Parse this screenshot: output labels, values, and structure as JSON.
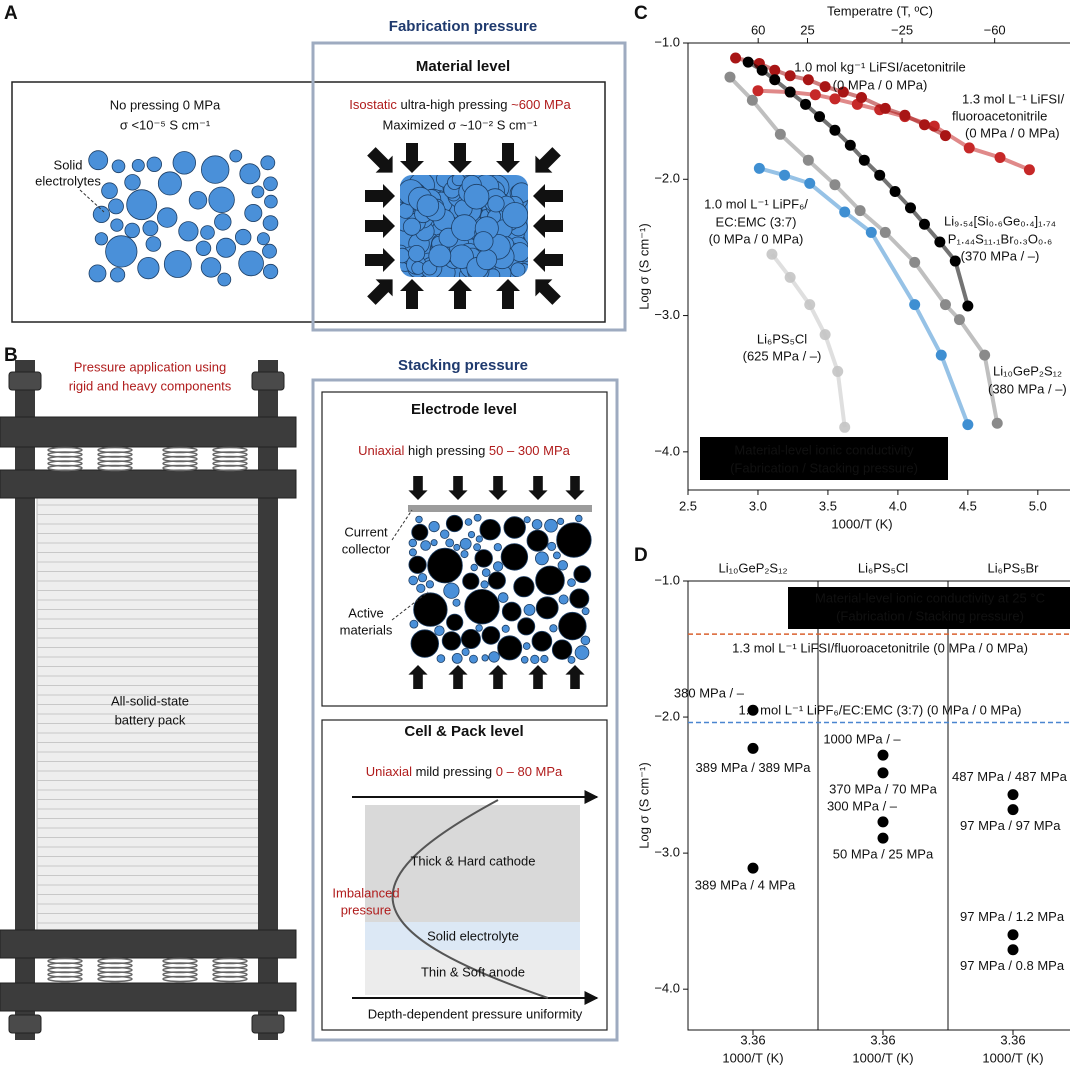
{
  "panel_a": {
    "label": "A",
    "header": "Fabrication pressure",
    "box_title": "Material level",
    "left_lines": [
      "No pressing 0 MPa",
      "σ <10⁻⁵ S cm⁻¹"
    ],
    "right_line1": [
      "Isostatic",
      " ultra-high pressing ",
      "~600 MPa"
    ],
    "right_line2": "Maximized σ ~10⁻² S cm⁻¹",
    "callout": [
      "Solid",
      "electrolytes"
    ]
  },
  "panel_b": {
    "label": "B",
    "left_caption": [
      "Pressure application using",
      "rigid and heavy components"
    ],
    "pack_label": [
      "All-solid-state",
      "battery pack"
    ],
    "header": "Stacking pressure",
    "electrode": {
      "title": "Electrode level",
      "line": [
        "Uniaxial",
        " high pressing ",
        "50 – 300 MPa"
      ],
      "callout1": [
        "Current",
        "collector"
      ],
      "callout2": [
        "Active",
        "materials"
      ]
    },
    "cell": {
      "title": "Cell & Pack level",
      "line": [
        "Uniaxial",
        " mild pressing ",
        "0 – 80 MPa"
      ],
      "layers": [
        "Thick & Hard cathode",
        "Solid electrolyte",
        "Thin & Soft anode"
      ],
      "callout": [
        "Imbalanced",
        "pressure"
      ],
      "axis_label": "Depth-dependent pressure uniformity"
    }
  },
  "chart_data": [
    {
      "type": "line",
      "panel_label": "C",
      "xlabel": "1000/T (K)",
      "ylabel": "Log σ (S cm⁻¹)",
      "x2label": "Temperatre (T, ºC)",
      "xlim": [
        2.5,
        5.23
      ],
      "ylim": [
        -4.28,
        -1.0
      ],
      "xticks": [
        2.5,
        {
          "value": 3,
          "label": "3.0"
        },
        3.5,
        {
          "value": 4,
          "label": "4.0"
        },
        4.5,
        {
          "value": 5,
          "label": "5.0"
        }
      ],
      "yticks": [
        {
          "value": -1,
          "label": "−1.0"
        },
        {
          "value": -2,
          "label": "−2.0"
        },
        {
          "value": -3,
          "label": "−3.0"
        },
        {
          "value": -4,
          "label": "−4.0"
        }
      ],
      "x2ticks": [
        60,
        25,
        {
          "value": -25,
          "label": "−25"
        },
        {
          "value": -60,
          "label": "−60"
        }
      ],
      "annotation": [
        "Material-level ionic conductivity",
        "(Fabrication / Stacking pressure)"
      ],
      "series": [
        {
          "label_lines": [
            "1.0 mol kg⁻¹ LiFSI/acetonitrile",
            "(0 MPa / 0 MPa)"
          ],
          "color": "#a81515",
          "x": [
            2.84,
            3.01,
            3.12,
            3.23,
            3.36,
            3.48,
            3.61,
            3.74,
            3.91,
            4.05,
            4.19,
            4.34
          ],
          "values": [
            -1.11,
            -1.15,
            -1.2,
            -1.24,
            -1.27,
            -1.32,
            -1.36,
            -1.4,
            -1.48,
            -1.53,
            -1.6,
            -1.68
          ]
        },
        {
          "label_lines": [
            "1.3 mol L⁻¹ LiFSI/",
            "fluoroacetonitrile",
            "(0 MPa / 0 MPa)"
          ],
          "color": "#c62828",
          "x": [
            3.0,
            3.23,
            3.41,
            3.55,
            3.71,
            3.87,
            4.05,
            4.26,
            4.51,
            4.73,
            4.94
          ],
          "values": [
            -1.35,
            -1.36,
            -1.38,
            -1.41,
            -1.45,
            -1.49,
            -1.54,
            -1.61,
            -1.77,
            -1.84,
            -1.93
          ]
        },
        {
          "label_lines": [
            "Li₉.₅₄[Si₀.₆Ge₀.₄]₁.₇₄",
            "P₁.₄₄S₁₁.₁Br₀.₃O₀.₆",
            "(370 MPa / –)"
          ],
          "color": "#000000",
          "x": [
            2.93,
            3.03,
            3.12,
            3.23,
            3.34,
            3.44,
            3.55,
            3.66,
            3.76,
            3.87,
            3.98,
            4.09,
            4.19,
            4.3,
            4.41,
            4.5
          ],
          "values": [
            -1.14,
            -1.2,
            -1.27,
            -1.36,
            -1.45,
            -1.54,
            -1.64,
            -1.75,
            -1.86,
            -1.97,
            -2.09,
            -2.21,
            -2.33,
            -2.46,
            -2.6,
            -2.93
          ]
        },
        {
          "label_lines": [
            "Li₁₀GeP₂S₁₂",
            "(380 MPa / –)"
          ],
          "color": "#8a8a8a",
          "x": [
            2.8,
            2.96,
            3.16,
            3.36,
            3.55,
            3.73,
            3.91,
            4.12,
            4.34,
            4.44,
            4.62,
            4.71
          ],
          "values": [
            -1.25,
            -1.42,
            -1.67,
            -1.86,
            -2.04,
            -2.23,
            -2.39,
            -2.61,
            -2.92,
            -3.03,
            -3.29,
            -3.79
          ]
        },
        {
          "label_lines": [
            "1.0 mol L⁻¹ LiPF₆/",
            "EC:EMC (3:7)",
            "(0 MPa / 0 MPa)"
          ],
          "color": "#3f8fd2",
          "x": [
            3.01,
            3.19,
            3.37,
            3.62,
            3.81,
            4.12,
            4.31,
            4.5
          ],
          "values": [
            -1.92,
            -1.97,
            -2.03,
            -2.24,
            -2.39,
            -2.92,
            -3.29,
            -3.8
          ]
        },
        {
          "label_lines": [
            "Li₆PS₅Cl",
            "(625 MPa / –)"
          ],
          "color": "#c4c4c4",
          "x": [
            3.1,
            3.23,
            3.37,
            3.48,
            3.57,
            3.62
          ],
          "values": [
            -2.55,
            -2.72,
            -2.92,
            -3.14,
            -3.41,
            -3.82
          ]
        }
      ]
    },
    {
      "type": "strip",
      "panel_label": "D",
      "xlabel": "1000/T (K)",
      "ylabel": "Log σ (S cm⁻¹)",
      "ylim": [
        -4.3,
        -1.0
      ],
      "yticks": [
        {
          "value": -1,
          "label": "−1.0"
        },
        {
          "value": -2,
          "label": "−2.0"
        },
        {
          "value": -3,
          "label": "−3.0"
        },
        {
          "value": -4,
          "label": "−4.0"
        }
      ],
      "annotation": [
        "Material-level ionic conductivity at 25 °C",
        "(Fabrication / Stacking pressure)"
      ],
      "reference_lines": [
        {
          "label": "1.3 mol L⁻¹ LiFSI/fluoroacetonitrile (0 MPa / 0 MPa)",
          "value": -1.39,
          "color": "#d9602e"
        },
        {
          "label": "1.0 mol L⁻¹ LiPF₆/EC:EMC (3:7) (0 MPa / 0 MPa)",
          "value": -2.04,
          "color": "#4a86d0"
        }
      ],
      "columns": [
        {
          "title": "Li₁₀GeP₂S₁₂",
          "category": "3.36",
          "values": [
            -1.95,
            -2.23,
            -3.11
          ],
          "point_labels": [
            "380 MPa / –",
            "389 MPa / 389 MPa",
            "389 MPa / 4 MPa"
          ]
        },
        {
          "title": "Li₆PS₅Cl",
          "category": "3.36",
          "values": [
            -2.28,
            -2.41,
            -2.77,
            -2.89
          ],
          "point_labels": [
            "1000 MPa / –",
            "370 MPa / 70 MPa",
            "300 MPa / –",
            "50 MPa / 25 MPa"
          ]
        },
        {
          "title": "Li₆PS₅Br",
          "category": "3.36",
          "values": [
            -2.57,
            -2.68,
            -3.6,
            -3.71
          ],
          "point_labels": [
            "487 MPa / 487 MPa",
            "97 MPa / 97 MPa",
            "97 MPa / 1.2 MPa",
            "97 MPa / 0.8 MPa"
          ]
        }
      ]
    }
  ]
}
